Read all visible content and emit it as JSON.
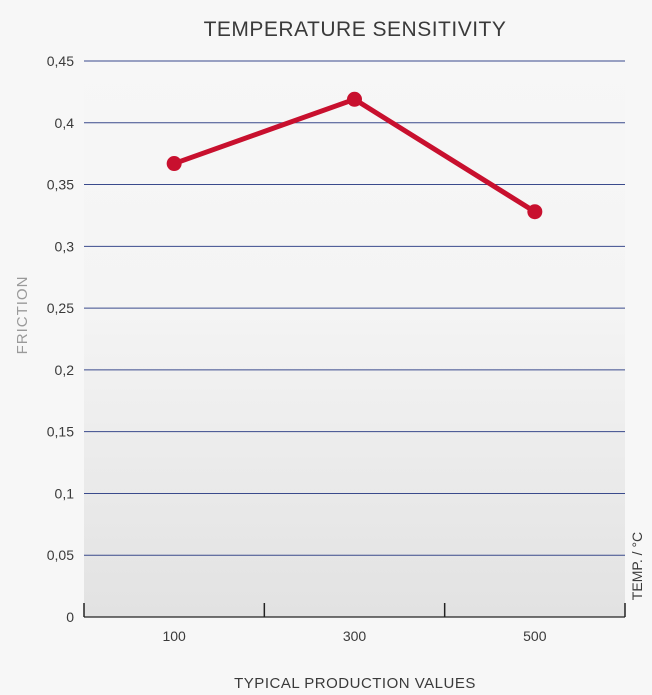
{
  "chart_data": {
    "type": "line",
    "title": "TEMPERATURE SENSITIVITY",
    "ylabel": "FRICTION",
    "xlabel": "TYPICAL PRODUCTION VALUES",
    "x_unit_label": "TEMP. / °C",
    "categories": [
      "100",
      "300",
      "500"
    ],
    "y_ticks": [
      "0",
      "0,05",
      "0,1",
      "0,15",
      "0,2",
      "0,25",
      "0,3",
      "0,35",
      "0,4",
      "0,45"
    ],
    "ylim": [
      0,
      0.45
    ],
    "grid": true,
    "series": [
      {
        "values": [
          0.367,
          0.419,
          0.328
        ]
      }
    ],
    "colors": {
      "line": "#c8102e",
      "grid": "#3a4a8c",
      "text": "#3a3a3a",
      "axis_title": "#9a9a9a",
      "bg_top": "#f7f7f7",
      "bg_bottom": "#e2e2e2"
    }
  }
}
